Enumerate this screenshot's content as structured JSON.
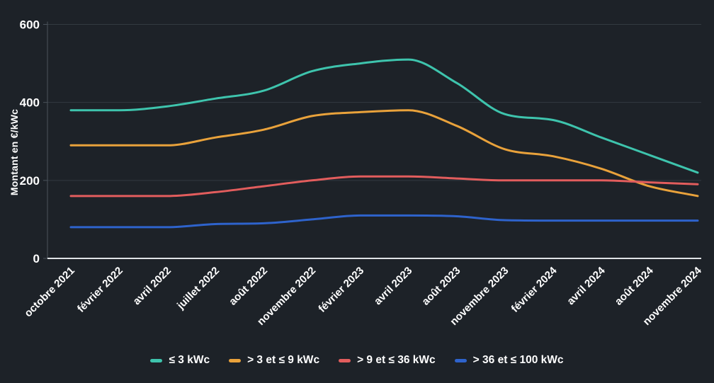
{
  "figure": {
    "background": "#1d2228",
    "grid_color": "#333a41",
    "axis_color": "#4a525a",
    "baseline_color": "#dfe3e6",
    "text_color": "#ffffff"
  },
  "chart_data": {
    "type": "line",
    "title": "",
    "xlabel": "",
    "ylabel": "Montant en €/kWc",
    "ylim": [
      0,
      600
    ],
    "yticks": [
      0,
      200,
      400,
      600
    ],
    "grid": "horizontal",
    "curve": "smooth",
    "legend_position": "bottom",
    "categories": [
      "octobre 2021",
      "février 2022",
      "avril 2022",
      "juillet 2022",
      "août 2022",
      "novembre 2022",
      "février 2023",
      "avril 2023",
      "août 2023",
      "novembre 2023",
      "février 2024",
      "avril 2024",
      "août 2024",
      "novembre 2024"
    ],
    "series": [
      {
        "name": "≤ 3 kWc",
        "color": "#3ec4ad",
        "values": [
          380,
          380,
          390,
          410,
          430,
          480,
          500,
          510,
          450,
          370,
          355,
          310,
          265,
          220
        ]
      },
      {
        "name": "> 3 et ≤ 9 kWc",
        "color": "#e9a23b",
        "values": [
          290,
          290,
          290,
          310,
          330,
          365,
          375,
          380,
          340,
          280,
          262,
          230,
          185,
          160
        ]
      },
      {
        "name": "> 9 et ≤ 36 kWc",
        "color": "#e25d5d",
        "values": [
          160,
          160,
          160,
          170,
          185,
          200,
          210,
          210,
          205,
          200,
          200,
          200,
          195,
          190
        ]
      },
      {
        "name": "> 36 et ≤ 100 kWc",
        "color": "#2e63cc",
        "values": [
          80,
          80,
          80,
          88,
          90,
          100,
          110,
          110,
          108,
          98,
          97,
          97,
          97,
          97
        ]
      }
    ]
  }
}
